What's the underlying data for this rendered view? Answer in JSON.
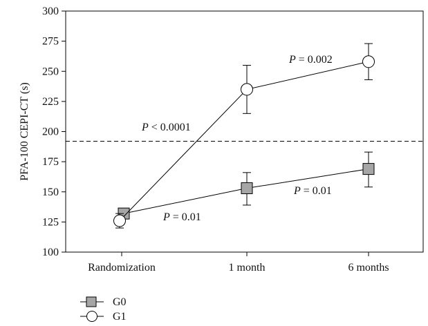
{
  "chart_data": {
    "type": "line",
    "categories": [
      "Randomization",
      "1 month",
      "6 months"
    ],
    "ylabel": "PFA-100 CEPI-CT (s)",
    "xlabel": "",
    "ylim": [
      100,
      300
    ],
    "yticks": [
      100,
      125,
      150,
      175,
      200,
      225,
      250,
      275,
      300
    ],
    "reference_line": {
      "y": 192,
      "style": "dashed"
    },
    "series": [
      {
        "name": "G0",
        "marker": "square",
        "marker_fill": "#a6a6a6",
        "values": [
          132,
          153,
          169
        ],
        "error": [
          [
            129,
            135
          ],
          [
            139,
            166
          ],
          [
            154,
            183
          ]
        ]
      },
      {
        "name": "G1",
        "marker": "circle",
        "marker_fill": "#ffffff",
        "values": [
          126,
          235,
          258
        ],
        "error": [
          [
            120,
            132
          ],
          [
            215,
            255
          ],
          [
            243,
            273
          ]
        ]
      }
    ],
    "annotations": [
      {
        "text_pre": "P",
        "text_post": " < 0.0001",
        "near_category": "Randomization",
        "near_y": 203
      },
      {
        "text_pre": "P",
        "text_post": " = 0.01",
        "near_category": "Randomization",
        "near_y": 120
      },
      {
        "text_pre": "P",
        "text_post": " = 0.002",
        "near_category": "1 month",
        "near_y": 261
      },
      {
        "text_pre": "P",
        "text_post": " = 0.01",
        "near_category": "6 months",
        "near_y": 156
      }
    ],
    "legend": {
      "placement": "bottom-left",
      "entries": [
        "G0",
        "G1"
      ]
    },
    "grid": false
  }
}
